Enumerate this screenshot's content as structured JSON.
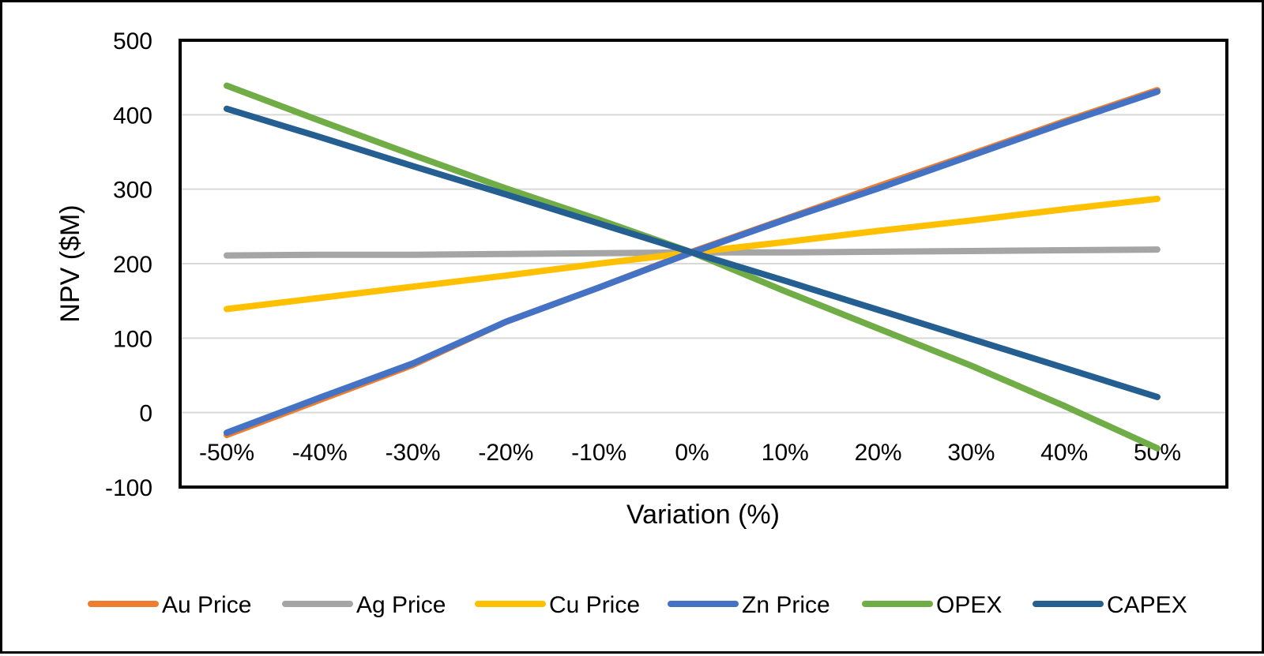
{
  "chart_data": {
    "type": "line",
    "xlabel": "Variation (%)",
    "ylabel": "NPV ($M)",
    "categories": [
      "-50%",
      "-40%",
      "-30%",
      "-20%",
      "-10%",
      "0%",
      "10%",
      "20%",
      "30%",
      "40%",
      "50%"
    ],
    "ylim": [
      -100,
      500
    ],
    "yticks": [
      500,
      400,
      300,
      200,
      100,
      0,
      -100
    ],
    "grid": true,
    "legend_position": "bottom",
    "series": [
      {
        "name": "Au Price",
        "color": "#ED7D31",
        "values": [
          -30,
          17,
          64,
          122,
          168,
          216,
          260,
          304,
          347,
          391,
          433
        ]
      },
      {
        "name": "Ag Price",
        "color": "#A5A5A5",
        "values": [
          211,
          212,
          212,
          213,
          214,
          215,
          215,
          216,
          217,
          218,
          219
        ]
      },
      {
        "name": "Cu Price",
        "color": "#FFC000",
        "values": [
          139,
          154,
          169,
          184,
          200,
          215,
          229,
          244,
          258,
          273,
          287
        ]
      },
      {
        "name": "Zn Price",
        "color": "#4472C4",
        "values": [
          -27,
          20,
          66,
          122,
          168,
          215,
          259,
          301,
          345,
          389,
          431
        ]
      },
      {
        "name": "OPEX",
        "color": "#70AD47",
        "values": [
          439,
          392,
          346,
          301,
          259,
          215,
          163,
          113,
          63,
          9,
          -48
        ]
      },
      {
        "name": "CAPEX",
        "color": "#255E91",
        "values": [
          408,
          370,
          331,
          293,
          254,
          215,
          177,
          138,
          99,
          60,
          21
        ]
      }
    ]
  }
}
